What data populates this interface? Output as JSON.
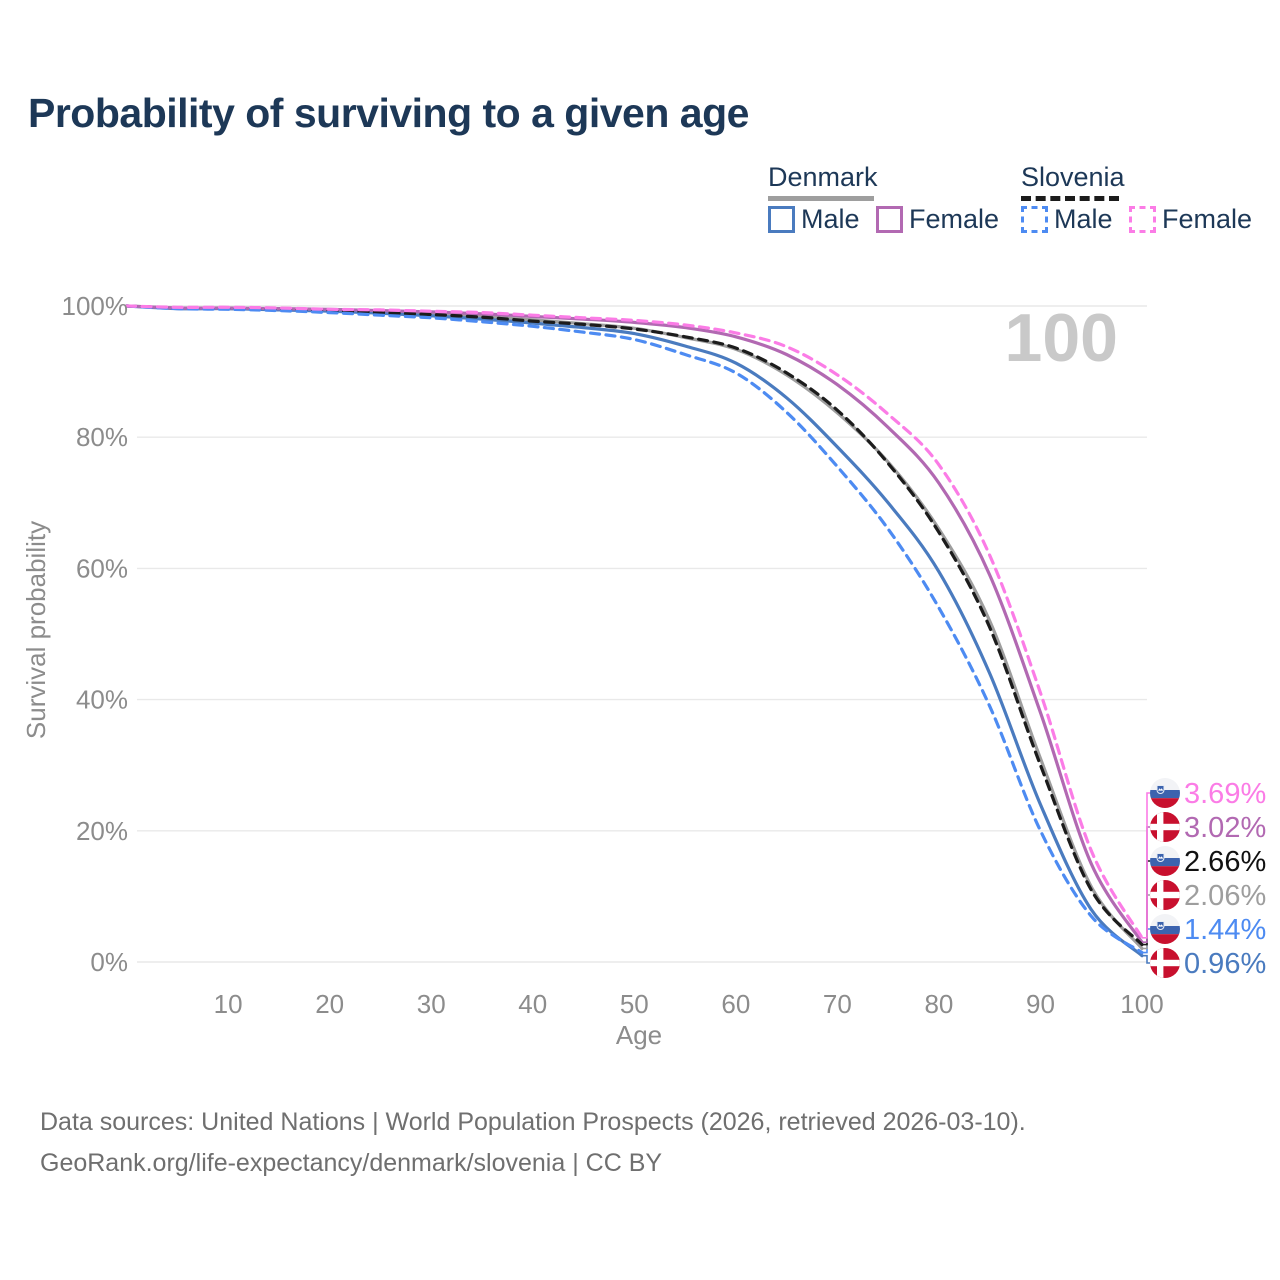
{
  "page": {
    "title": "Probability of surviving to a given age"
  },
  "legend": {
    "groups": [
      {
        "label": "Denmark",
        "line_style": "solid",
        "line_color": "#9e9e9e",
        "items": [
          {
            "label": "Male",
            "color": "#4a7bbf",
            "dashed": false
          },
          {
            "label": "Female",
            "color": "#b269b2",
            "dashed": false
          }
        ]
      },
      {
        "label": "Slovenia",
        "line_style": "dashed",
        "line_color": "#1c1c1c",
        "items": [
          {
            "label": "Male",
            "color": "#4d8bf2",
            "dashed": true
          },
          {
            "label": "Female",
            "color": "#fb7ce6",
            "dashed": true
          }
        ]
      }
    ]
  },
  "chart_data": {
    "type": "line",
    "title": "Probability of surviving to a given age",
    "xlabel": "Age",
    "ylabel": "Survival probability",
    "xlim": [
      0,
      100
    ],
    "ylim": [
      0,
      100
    ],
    "xticks": [
      10,
      20,
      30,
      40,
      50,
      60,
      70,
      80,
      90,
      100
    ],
    "yticks": [
      0,
      20,
      40,
      60,
      80,
      100
    ],
    "ytick_suffix": "%",
    "grid": "horizontal",
    "watermark": "100",
    "x": [
      0,
      5,
      10,
      15,
      20,
      25,
      30,
      35,
      40,
      45,
      50,
      55,
      60,
      65,
      70,
      75,
      80,
      85,
      90,
      95,
      100
    ],
    "series": [
      {
        "id": "denmark-total",
        "name": "Denmark",
        "country": "Denmark",
        "sex": "Total",
        "flag": "dk",
        "color": "#9e9e9e",
        "dashed": false,
        "end_label": "2.06%",
        "end_value": 2.06,
        "values": [
          100,
          99.7,
          99.6,
          99.5,
          99.4,
          99.1,
          98.8,
          98.4,
          97.9,
          97.3,
          96.6,
          95.2,
          93.4,
          89.5,
          83.7,
          76.2,
          66.0,
          52.0,
          31.0,
          11.5,
          2.06
        ]
      },
      {
        "id": "denmark-male",
        "name": "Denmark Male",
        "country": "Denmark",
        "sex": "Male",
        "flag": "dk",
        "color": "#4a7bbf",
        "dashed": false,
        "end_label": "0.96%",
        "end_value": 0.96,
        "values": [
          100,
          99.6,
          99.6,
          99.4,
          99.2,
          98.9,
          98.5,
          98.0,
          97.4,
          96.7,
          95.8,
          93.9,
          91.3,
          86.0,
          78.5,
          70.0,
          59.5,
          44.0,
          24.0,
          8.0,
          0.96
        ]
      },
      {
        "id": "denmark-female",
        "name": "Denmark Female",
        "country": "Denmark",
        "sex": "Female",
        "flag": "dk",
        "color": "#b269b2",
        "dashed": false,
        "end_label": "3.02%",
        "end_value": 3.02,
        "values": [
          100,
          99.7,
          99.7,
          99.6,
          99.5,
          99.3,
          99.1,
          98.8,
          98.4,
          98.0,
          97.5,
          96.7,
          95.3,
          92.6,
          88.0,
          81.5,
          73.0,
          59.0,
          38.0,
          15.0,
          3.02
        ]
      },
      {
        "id": "slovenia-total",
        "name": "Slovenia",
        "country": "Slovenia",
        "sex": "Total",
        "flag": "si",
        "color": "#1c1c1c",
        "dashed": true,
        "end_label": "2.66%",
        "end_value": 2.66,
        "values": [
          100,
          99.7,
          99.6,
          99.5,
          99.3,
          99.0,
          98.7,
          98.3,
          97.7,
          97.2,
          96.5,
          95.3,
          93.6,
          89.8,
          84.1,
          76.0,
          65.5,
          51.0,
          30.0,
          11.0,
          2.66
        ]
      },
      {
        "id": "slovenia-male",
        "name": "Slovenia Male",
        "country": "Slovenia",
        "sex": "Male",
        "flag": "si",
        "color": "#4d8bf2",
        "dashed": true,
        "end_label": "1.44%",
        "end_value": 1.44,
        "values": [
          100,
          99.6,
          99.5,
          99.3,
          99.0,
          98.6,
          98.2,
          97.6,
          96.9,
          96.0,
          94.9,
          92.6,
          89.8,
          83.8,
          75.5,
          66.0,
          54.0,
          39.0,
          20.0,
          7.0,
          1.44
        ]
      },
      {
        "id": "slovenia-female",
        "name": "Slovenia Female",
        "country": "Slovenia",
        "sex": "Female",
        "flag": "si",
        "color": "#fb7ce6",
        "dashed": true,
        "end_label": "3.69%",
        "end_value": 3.69,
        "values": [
          100,
          99.8,
          99.8,
          99.7,
          99.5,
          99.4,
          99.2,
          99.0,
          98.6,
          98.2,
          97.8,
          97.1,
          95.9,
          93.8,
          89.5,
          83.5,
          75.8,
          62.0,
          41.0,
          17.0,
          3.69
        ]
      }
    ]
  },
  "footer": {
    "line1": "Data sources: United Nations | World Population Prospects (2026, retrieved 2026-03-10).",
    "line2": "GeoRank.org/life-expectancy/denmark/slovenia | CC BY"
  }
}
